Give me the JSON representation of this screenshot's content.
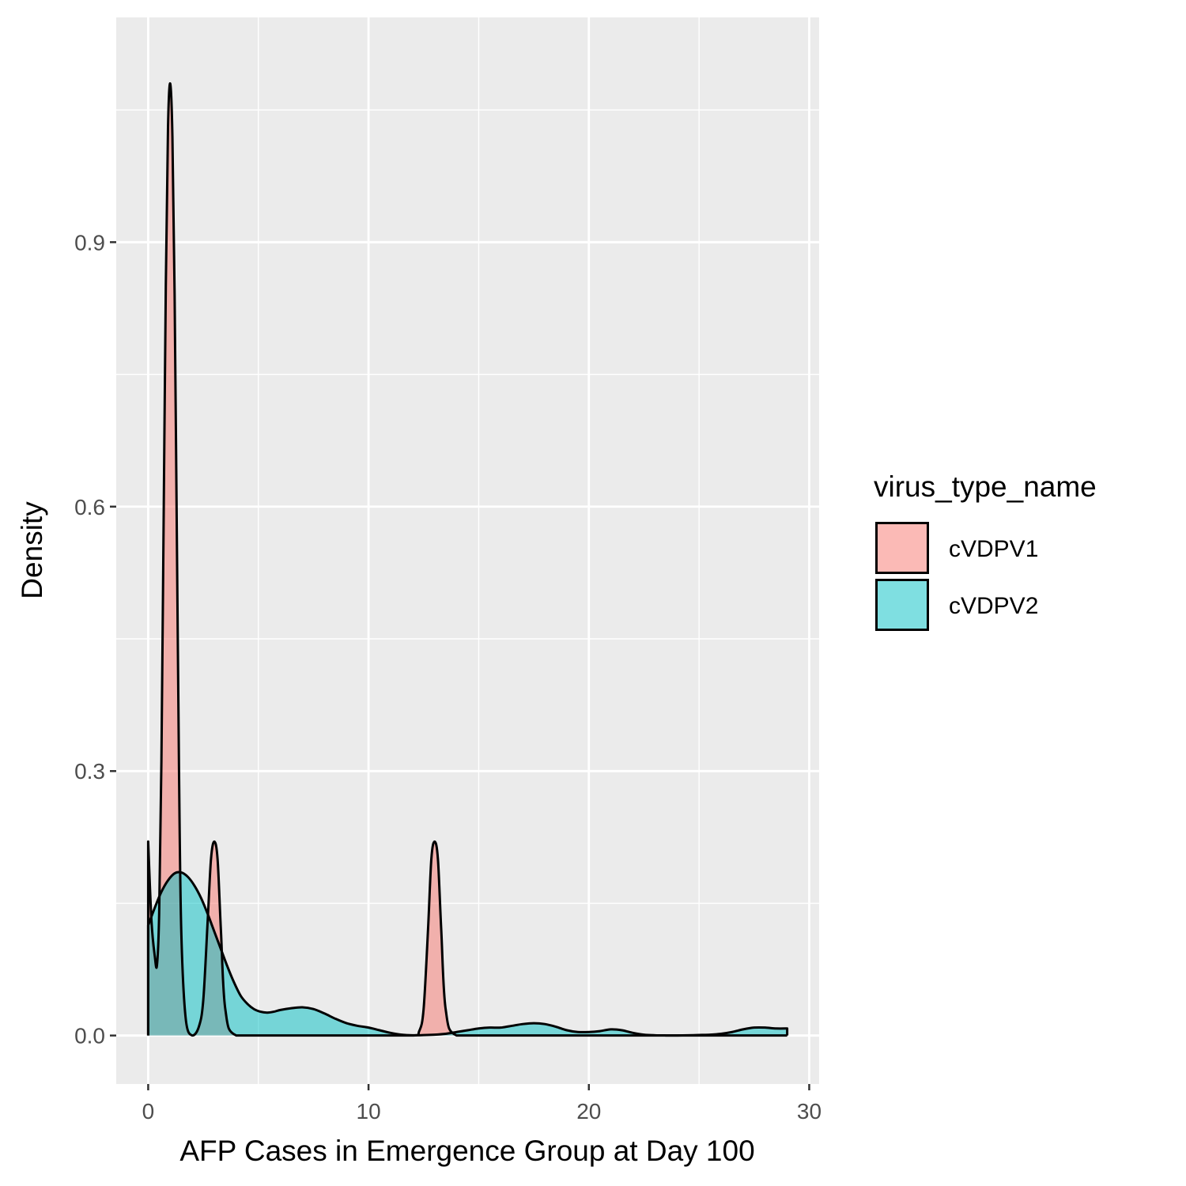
{
  "chart_data": {
    "type": "area",
    "subtype": "density",
    "xlabel": "AFP Cases in Emergence Group at Day 100",
    "ylabel": "Density",
    "xlim": [
      -1.45,
      30.45
    ],
    "ylim": [
      -0.055,
      1.155
    ],
    "x_ticks": [
      0,
      10,
      20,
      30
    ],
    "x_tick_labels": [
      "0",
      "10",
      "20",
      "30"
    ],
    "y_ticks": [
      0.0,
      0.3,
      0.6,
      0.9
    ],
    "y_tick_labels": [
      "0.0",
      "0.3",
      "0.6",
      "0.9"
    ],
    "grid": true,
    "panel_background": "#ebebeb",
    "legend": {
      "title": "virus_type_name",
      "position": "right"
    },
    "series": [
      {
        "name": "cVDPV1",
        "color": "#F8766D",
        "x": [
          0,
          0.15,
          0.3,
          0.4,
          0.5,
          0.6,
          0.7,
          0.8,
          0.9,
          1.0,
          1.1,
          1.2,
          1.3,
          1.4,
          1.5,
          1.7,
          2.0,
          2.3,
          2.5,
          2.7,
          2.85,
          3.0,
          3.15,
          3.3,
          3.5,
          4.0,
          6,
          8,
          10,
          12,
          12.3,
          12.5,
          12.7,
          12.85,
          13.0,
          13.15,
          13.3,
          13.5,
          14.0,
          16,
          20,
          24,
          29
        ],
        "values": [
          0.22,
          0.13,
          0.09,
          0.08,
          0.14,
          0.31,
          0.58,
          0.85,
          1.03,
          1.08,
          1.02,
          0.84,
          0.57,
          0.3,
          0.12,
          0.02,
          0.0,
          0.01,
          0.04,
          0.13,
          0.2,
          0.22,
          0.2,
          0.12,
          0.03,
          0.0,
          0.0,
          0.0,
          0.0,
          0.0,
          0.005,
          0.03,
          0.12,
          0.2,
          0.22,
          0.2,
          0.12,
          0.03,
          0.0,
          0.0,
          0.0,
          0.0,
          0.0
        ]
      },
      {
        "name": "cVDPV2",
        "color": "#00BFC4",
        "x": [
          0,
          0.3,
          0.6,
          0.9,
          1.2,
          1.5,
          1.8,
          2.1,
          2.4,
          2.7,
          3.0,
          3.3,
          3.6,
          3.9,
          4.2,
          4.5,
          4.8,
          5.1,
          5.4,
          5.7,
          6.0,
          6.5,
          7.0,
          7.5,
          8.0,
          8.5,
          9.0,
          9.5,
          10.0,
          10.5,
          11.0,
          11.5,
          12.0,
          12.5,
          13.0,
          13.5,
          14.0,
          14.5,
          15.0,
          15.5,
          16.0,
          16.5,
          17.0,
          17.5,
          18.0,
          18.5,
          19.0,
          19.5,
          20.0,
          20.5,
          21.0,
          21.5,
          22.0,
          22.5,
          23.0,
          23.5,
          24.0,
          24.5,
          25.0,
          25.5,
          26.0,
          26.5,
          27.0,
          27.5,
          28.0,
          28.5,
          29.0
        ],
        "values": [
          0.125,
          0.145,
          0.163,
          0.176,
          0.184,
          0.185,
          0.18,
          0.17,
          0.156,
          0.138,
          0.118,
          0.098,
          0.078,
          0.06,
          0.045,
          0.036,
          0.03,
          0.027,
          0.026,
          0.027,
          0.029,
          0.031,
          0.032,
          0.03,
          0.025,
          0.019,
          0.014,
          0.011,
          0.009,
          0.006,
          0.003,
          0.001,
          0.0003,
          0.0005,
          0.001,
          0.002,
          0.004,
          0.006,
          0.008,
          0.009,
          0.009,
          0.011,
          0.013,
          0.014,
          0.013,
          0.01,
          0.006,
          0.004,
          0.004,
          0.005,
          0.007,
          0.006,
          0.003,
          0.001,
          0.0003,
          0.0001,
          0.0001,
          0.0003,
          0.0006,
          0.001,
          0.002,
          0.004,
          0.007,
          0.009,
          0.009,
          0.008,
          0.008
        ]
      }
    ]
  }
}
